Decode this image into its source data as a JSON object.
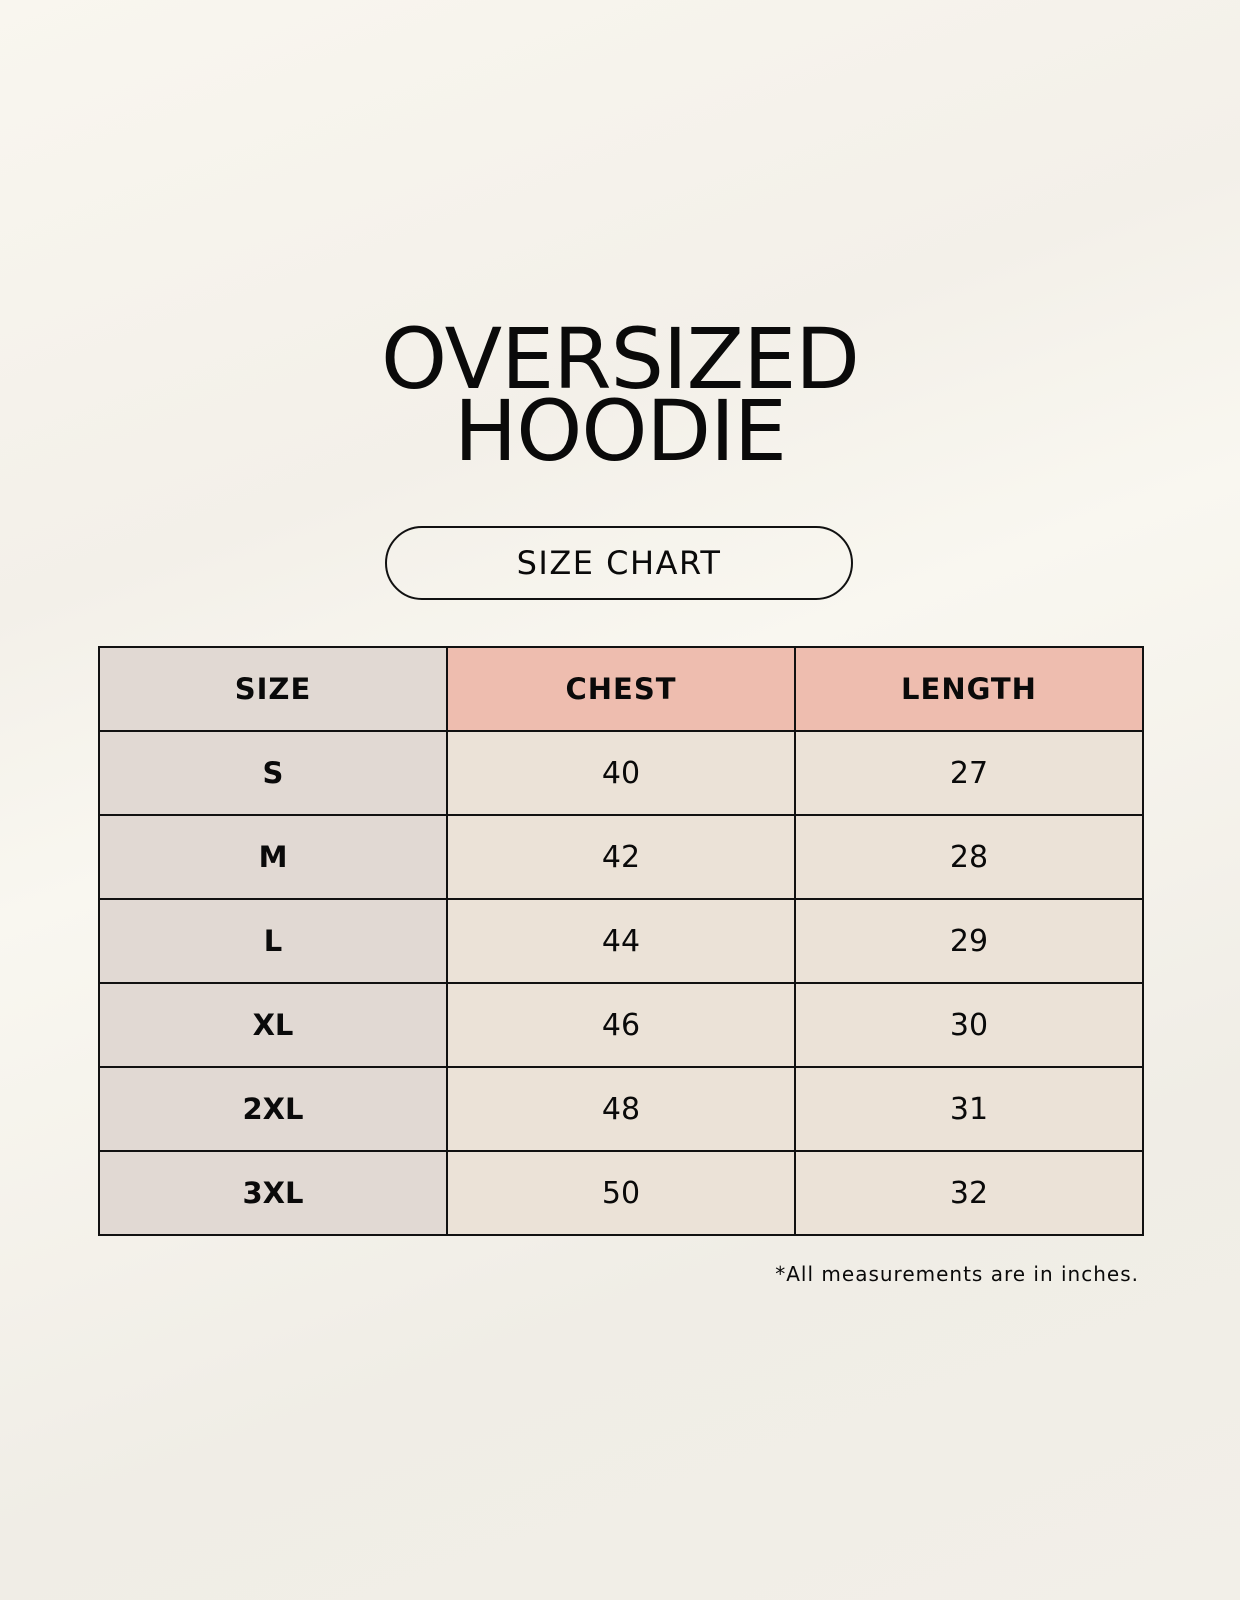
{
  "title": {
    "line1": "OVERSIZED",
    "line2": "HOODIE"
  },
  "subtitle": "SIZE CHART",
  "table": {
    "headers": [
      "SIZE",
      "CHEST",
      "LENGTH"
    ],
    "rows": [
      [
        "S",
        "40",
        "27"
      ],
      [
        "M",
        "42",
        "28"
      ],
      [
        "L",
        "44",
        "29"
      ],
      [
        "XL",
        "46",
        "30"
      ],
      [
        "2XL",
        "48",
        "31"
      ],
      [
        "3XL",
        "50",
        "32"
      ]
    ]
  },
  "footnote": "*All measurements are in inches.",
  "colors": {
    "size_column": "#e1d9d3",
    "header_accent": "#eebdaf",
    "cell": "#ebe2d7"
  }
}
